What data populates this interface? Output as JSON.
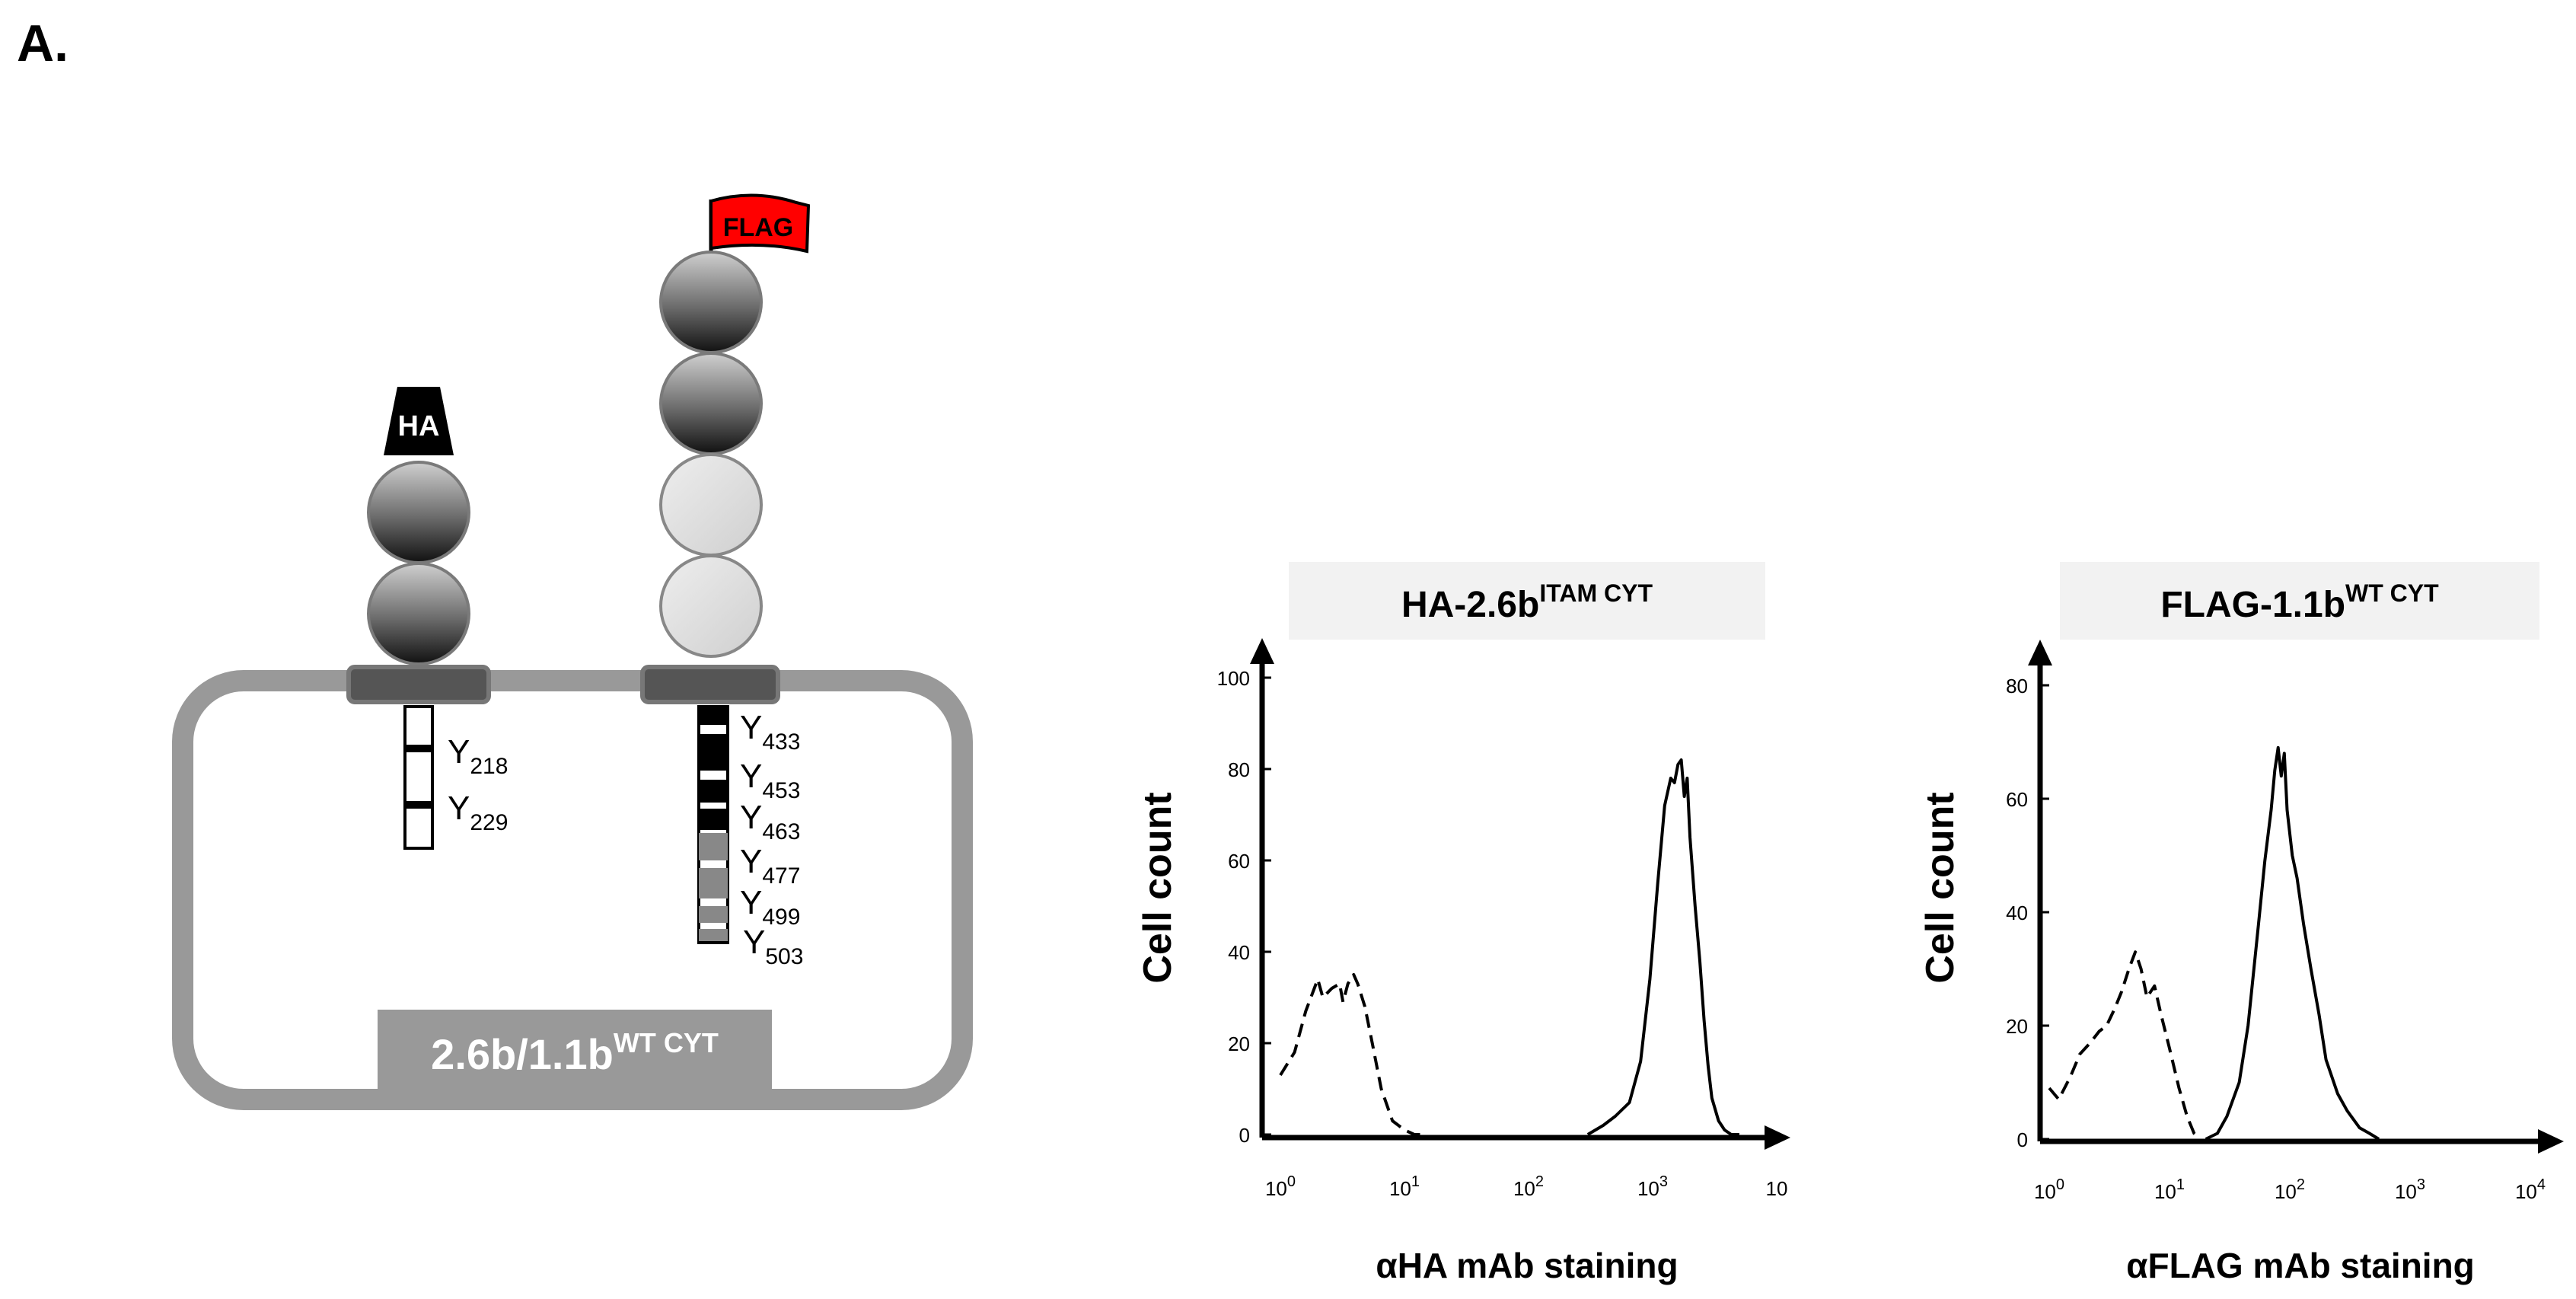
{
  "panel_label": "A.",
  "schematic": {
    "ha_tag": "HA",
    "flag_tag": "FLAG",
    "tag_color": "#ff0000",
    "construct_base": "2.6b/1.1b",
    "construct_sup": "WT CYT",
    "ha_tyrosines": [
      {
        "letter": "Y",
        "num": "218"
      },
      {
        "letter": "Y",
        "num": "229"
      }
    ],
    "flag_tyrosines": [
      {
        "letter": "Y",
        "num": "433"
      },
      {
        "letter": "Y",
        "num": "453"
      },
      {
        "letter": "Y",
        "num": "463"
      },
      {
        "letter": "Y",
        "num": "477"
      },
      {
        "letter": "Y",
        "num": "499"
      },
      {
        "letter": "Y",
        "num": "503"
      }
    ]
  },
  "chart_data": [
    {
      "type": "line",
      "title_base": "HA-2.6b",
      "title_sup": "ITAM CYT",
      "xlabel": "αHA mAb staining",
      "ylabel": "Cell count",
      "xscale": "log",
      "ylim": [
        0,
        100
      ],
      "yticks": [
        "0",
        "20",
        "40",
        "60",
        "80",
        "100"
      ],
      "xticks": [
        {
          "base": "10",
          "exp": "0"
        },
        {
          "base": "10",
          "exp": "1"
        },
        {
          "base": "10",
          "exp": "2"
        },
        {
          "base": "10",
          "exp": "3"
        },
        {
          "base": "10",
          "exp": ""
        }
      ],
      "series": [
        {
          "style": "dashed",
          "x": [
            1,
            1.3,
            1.6,
            2,
            2.2,
            2.6,
            3,
            3.2,
            3.5,
            3.9,
            4.2,
            4.8,
            5.5,
            6.5,
            8,
            10,
            12,
            15
          ],
          "y": [
            13,
            18,
            27,
            34,
            30,
            32,
            33,
            29,
            33,
            35,
            33,
            28,
            20,
            10,
            3,
            1,
            0,
            0
          ]
        },
        {
          "style": "solid",
          "x": [
            300,
            400,
            500,
            650,
            800,
            950,
            1100,
            1250,
            1400,
            1500,
            1600,
            1700,
            1800,
            1900,
            2000,
            2200,
            2400,
            2600,
            2800,
            3000,
            3400,
            3800,
            4300,
            5000
          ],
          "y": [
            0,
            2,
            4,
            7,
            16,
            34,
            55,
            72,
            78,
            77,
            81,
            82,
            74,
            78,
            65,
            50,
            38,
            25,
            15,
            8,
            3,
            1,
            0,
            0
          ]
        }
      ]
    },
    {
      "type": "line",
      "title_base": "FLAG-1.1b",
      "title_sup": "WT CYT",
      "xlabel": "αFLAG mAb staining",
      "ylabel": "Cell count",
      "xscale": "log",
      "ylim": [
        0,
        80
      ],
      "yticks": [
        "0",
        "20",
        "40",
        "60",
        "80"
      ],
      "xticks": [
        {
          "base": "10",
          "exp": "0"
        },
        {
          "base": "10",
          "exp": "1"
        },
        {
          "base": "10",
          "exp": "2"
        },
        {
          "base": "10",
          "exp": "3"
        },
        {
          "base": "10",
          "exp": "4"
        }
      ],
      "series": [
        {
          "style": "dashed",
          "x": [
            1,
            1.2,
            1.5,
            1.8,
            2.2,
            2.6,
            3,
            3.5,
            4,
            4.6,
            5.2,
            5.8,
            6.5,
            7.5,
            8.5,
            10,
            12,
            14,
            16,
            18
          ],
          "y": [
            9,
            7,
            11,
            15,
            17,
            19,
            20,
            23,
            26,
            30,
            33,
            30,
            25,
            27,
            22,
            16,
            9,
            4,
            1,
            0
          ]
        },
        {
          "style": "solid",
          "x": [
            20,
            25,
            30,
            38,
            45,
            55,
            62,
            70,
            75,
            80,
            85,
            90,
            95,
            105,
            115,
            130,
            150,
            175,
            200,
            250,
            300,
            380,
            460,
            550
          ],
          "y": [
            0,
            1,
            4,
            10,
            20,
            38,
            49,
            58,
            65,
            69,
            64,
            68,
            58,
            50,
            46,
            38,
            30,
            22,
            14,
            8,
            5,
            2,
            1,
            0
          ]
        }
      ]
    }
  ]
}
